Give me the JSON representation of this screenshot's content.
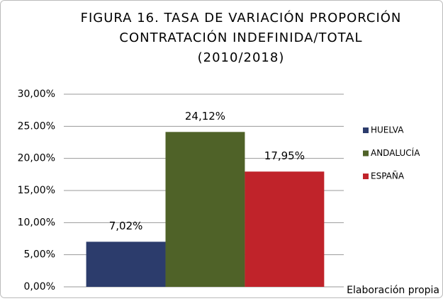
{
  "chart_data": {
    "type": "bar",
    "title": [
      "FIGURA 16. TASA DE VARIACIÓN PROPORCIÓN",
      "CONTRATACIÓN INDEFINIDA/TOTAL",
      "(2010/2018)"
    ],
    "categories": [
      null
    ],
    "series": [
      {
        "name": "HUELVA",
        "color": "#2c3c6c",
        "values": [
          7.02
        ],
        "value_labels": [
          "7,02%"
        ]
      },
      {
        "name": "ANDALUCÍA",
        "color": "#4f6228",
        "values": [
          24.12
        ],
        "value_labels": [
          "24,12%"
        ]
      },
      {
        "name": "ESPAÑA",
        "color": "#c0232a",
        "values": [
          17.95
        ],
        "value_labels": [
          "17,95%"
        ]
      }
    ],
    "ylim": [
      0,
      30
    ],
    "yticks": [
      {
        "value": 0,
        "label": "0,00%"
      },
      {
        "value": 5,
        "label": "5,00%"
      },
      {
        "value": 10,
        "label": "10,00%"
      },
      {
        "value": 15,
        "label": "15,00%"
      },
      {
        "value": 20,
        "label": "20,00%"
      },
      {
        "value": 25,
        "label": "25.00%"
      },
      {
        "value": 30,
        "label": "30,00%"
      }
    ],
    "grid": true,
    "legend": "right",
    "annotation": "Elaboración propia"
  }
}
